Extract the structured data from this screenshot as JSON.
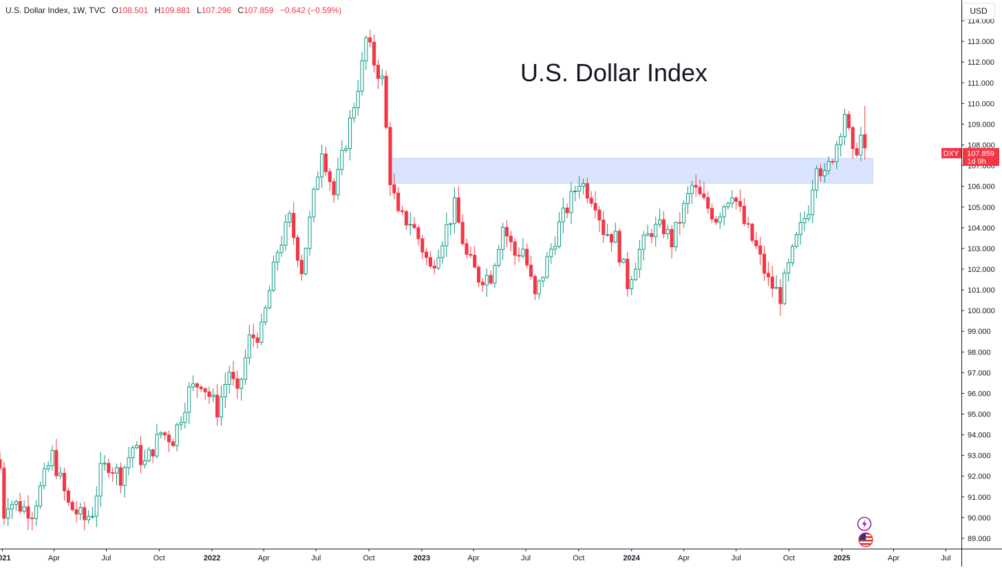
{
  "header": {
    "symbol": "U.S. Dollar Index, 1W, TVC",
    "open_label": "O",
    "open": "108.501",
    "high_label": "H",
    "high": "109.881",
    "low_label": "L",
    "low": "107.296",
    "close_label": "C",
    "close": "107.859",
    "change": "−0.642 (−0.59%)"
  },
  "currency_button": "USD",
  "price_tag": {
    "ticker": "DXY",
    "price": "107.859",
    "countdown": "1d 9h"
  },
  "colors": {
    "up": "#089981",
    "down": "#f23645",
    "zone": "#dbe4fd",
    "zone_border": "#c2d2fb",
    "axis_line": "#131722",
    "tag_bg": "#f23645"
  },
  "icons": [
    "lightning-icon",
    "us-flag-icon"
  ],
  "chart_data": {
    "type": "candlestick",
    "title": "U.S. Dollar Index",
    "interval": "1W",
    "ylim": [
      88.5,
      115.0
    ],
    "xlim": [
      "2020-12-28",
      "2025-07-28"
    ],
    "y_ticks": [
      "89.000",
      "90.000",
      "91.000",
      "92.000",
      "93.000",
      "94.000",
      "95.000",
      "96.000",
      "97.000",
      "98.000",
      "99.000",
      "100.000",
      "101.000",
      "102.000",
      "103.000",
      "104.000",
      "105.000",
      "106.000",
      "107.000",
      "108.000",
      "109.000",
      "110.000",
      "111.000",
      "112.000",
      "113.000",
      "114.000"
    ],
    "x_ticks": [
      {
        "label": "2021",
        "date": "2021-01-01",
        "bold": true
      },
      {
        "label": "Apr",
        "date": "2021-04-01",
        "bold": false
      },
      {
        "label": "Jul",
        "date": "2021-07-01",
        "bold": false
      },
      {
        "label": "Oct",
        "date": "2021-10-01",
        "bold": false
      },
      {
        "label": "2022",
        "date": "2022-01-01",
        "bold": true
      },
      {
        "label": "Apr",
        "date": "2022-04-01",
        "bold": false
      },
      {
        "label": "Jul",
        "date": "2022-07-01",
        "bold": false
      },
      {
        "label": "Oct",
        "date": "2022-10-01",
        "bold": false
      },
      {
        "label": "2023",
        "date": "2023-01-01",
        "bold": true
      },
      {
        "label": "Apr",
        "date": "2023-04-01",
        "bold": false
      },
      {
        "label": "Jul",
        "date": "2023-07-01",
        "bold": false
      },
      {
        "label": "Oct",
        "date": "2023-10-01",
        "bold": false
      },
      {
        "label": "2024",
        "date": "2024-01-01",
        "bold": true
      },
      {
        "label": "Apr",
        "date": "2024-04-01",
        "bold": false
      },
      {
        "label": "Jul",
        "date": "2024-07-01",
        "bold": false
      },
      {
        "label": "Oct",
        "date": "2024-10-01",
        "bold": false
      },
      {
        "label": "2025",
        "date": "2025-01-01",
        "bold": true
      },
      {
        "label": "Apr",
        "date": "2025-04-01",
        "bold": false
      },
      {
        "label": "Jul",
        "date": "2025-07-01",
        "bold": false
      }
    ],
    "zone": {
      "y_low": 106.15,
      "y_high": 107.35,
      "x_start": "2022-11-07",
      "x_end": "2025-02-24"
    },
    "anchors": [
      [
        "2020-12-28",
        92.4
      ],
      [
        "2021-01-04",
        90.2
      ],
      [
        "2021-01-11",
        90.8
      ],
      [
        "2021-02-22",
        90.3
      ],
      [
        "2021-03-29",
        93.0
      ],
      [
        "2021-04-26",
        90.6
      ],
      [
        "2021-05-24",
        89.9
      ],
      [
        "2021-06-07",
        90.3
      ],
      [
        "2021-06-21",
        92.2
      ],
      [
        "2021-07-05",
        92.6
      ],
      [
        "2021-07-26",
        92.0
      ],
      [
        "2021-08-16",
        93.4
      ],
      [
        "2021-09-06",
        92.6
      ],
      [
        "2021-10-04",
        94.1
      ],
      [
        "2021-10-25",
        93.8
      ],
      [
        "2021-11-22",
        96.1
      ],
      [
        "2021-12-13",
        96.6
      ],
      [
        "2022-01-10",
        95.2
      ],
      [
        "2022-01-31",
        97.1
      ],
      [
        "2022-02-14",
        95.8
      ],
      [
        "2022-03-07",
        98.6
      ],
      [
        "2022-03-28",
        99.0
      ],
      [
        "2022-04-25",
        102.9
      ],
      [
        "2022-05-16",
        104.4
      ],
      [
        "2022-06-06",
        102.0
      ],
      [
        "2022-06-20",
        104.3
      ],
      [
        "2022-07-11",
        107.9
      ],
      [
        "2022-08-01",
        105.6
      ],
      [
        "2022-08-22",
        108.2
      ],
      [
        "2022-09-19",
        111.8
      ],
      [
        "2022-09-26",
        113.1
      ],
      [
        "2022-10-10",
        112.0
      ],
      [
        "2022-10-24",
        111.1
      ],
      [
        "2022-11-07",
        106.4
      ],
      [
        "2022-11-21",
        104.5
      ],
      [
        "2022-12-12",
        104.3
      ],
      [
        "2022-12-26",
        103.5
      ],
      [
        "2023-01-16",
        102.0
      ],
      [
        "2023-02-06",
        103.5
      ],
      [
        "2023-02-27",
        105.0
      ],
      [
        "2023-03-20",
        102.6
      ],
      [
        "2023-04-10",
        101.6
      ],
      [
        "2023-05-01",
        101.7
      ],
      [
        "2023-05-22",
        104.1
      ],
      [
        "2023-06-12",
        102.7
      ],
      [
        "2023-06-26",
        103.0
      ],
      [
        "2023-07-17",
        100.6
      ],
      [
        "2023-08-07",
        102.4
      ],
      [
        "2023-08-28",
        104.1
      ],
      [
        "2023-09-18",
        105.4
      ],
      [
        "2023-10-02",
        106.3
      ],
      [
        "2023-10-30",
        105.3
      ],
      [
        "2023-11-13",
        103.9
      ],
      [
        "2023-12-04",
        103.5
      ],
      [
        "2023-12-25",
        101.3
      ],
      [
        "2024-01-15",
        102.9
      ],
      [
        "2024-02-05",
        103.9
      ],
      [
        "2024-02-26",
        104.0
      ],
      [
        "2024-03-11",
        103.3
      ],
      [
        "2024-03-25",
        104.4
      ],
      [
        "2024-04-15",
        106.0
      ],
      [
        "2024-05-06",
        105.2
      ],
      [
        "2024-05-27",
        104.5
      ],
      [
        "2024-06-24",
        105.8
      ],
      [
        "2024-07-15",
        104.2
      ],
      [
        "2024-08-05",
        103.0
      ],
      [
        "2024-08-26",
        101.4
      ],
      [
        "2024-09-16",
        100.7
      ],
      [
        "2024-10-14",
        103.4
      ],
      [
        "2024-11-04",
        105.0
      ],
      [
        "2024-11-18",
        107.3
      ],
      [
        "2024-12-02",
        106.4
      ],
      [
        "2024-12-23",
        108.1
      ],
      [
        "2025-01-06",
        109.6
      ],
      [
        "2025-01-20",
        107.4
      ],
      [
        "2025-02-03",
        108.4
      ]
    ],
    "last_candle": {
      "date": "2025-02-10",
      "open": 108.501,
      "high": 109.881,
      "low": 107.296,
      "close": 107.859
    }
  }
}
